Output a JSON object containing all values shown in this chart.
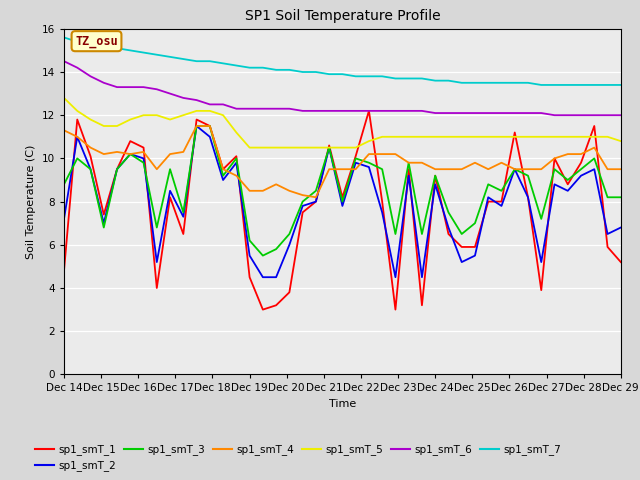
{
  "title": "SP1 Soil Temperature Profile",
  "xlabel": "Time",
  "ylabel": "Soil Temperature (C)",
  "ylim": [
    0,
    16
  ],
  "yticks": [
    0,
    2,
    4,
    6,
    8,
    10,
    12,
    14,
    16
  ],
  "annotation_text": "TZ_osu",
  "annotation_bg": "#ffffcc",
  "annotation_border": "#cc8800",
  "annotation_text_color": "#880000",
  "x_labels": [
    "Dec 14",
    "Dec 15",
    "Dec 16",
    "Dec 17",
    "Dec 18",
    "Dec 19",
    "Dec 20",
    "Dec 21",
    "Dec 22",
    "Dec 23",
    "Dec 24",
    "Dec 25",
    "Dec 26",
    "Dec 27",
    "Dec 28",
    "Dec 29"
  ],
  "series": {
    "sp1_smT_1": {
      "color": "#ff0000",
      "data": [
        4.8,
        11.8,
        10.1,
        7.4,
        9.5,
        10.8,
        10.5,
        4.0,
        8.2,
        6.5,
        11.8,
        11.5,
        9.5,
        10.1,
        4.5,
        3.0,
        3.2,
        3.8,
        7.5,
        8.0,
        10.6,
        8.2,
        10.1,
        12.2,
        8.0,
        3.0,
        9.5,
        3.2,
        9.2,
        6.5,
        5.9,
        5.9,
        8.0,
        8.0,
        11.2,
        8.2,
        3.9,
        10.0,
        8.8,
        9.8,
        11.5,
        5.9,
        5.2
      ]
    },
    "sp1_smT_2": {
      "color": "#0000ee",
      "data": [
        7.2,
        11.0,
        9.5,
        7.0,
        9.5,
        10.2,
        10.0,
        5.2,
        8.5,
        7.3,
        11.5,
        11.0,
        9.0,
        9.8,
        5.5,
        4.5,
        4.5,
        6.0,
        7.8,
        8.0,
        10.5,
        7.8,
        9.8,
        9.6,
        7.5,
        4.5,
        9.2,
        4.5,
        8.8,
        6.8,
        5.2,
        5.5,
        8.2,
        7.8,
        9.5,
        8.2,
        5.2,
        8.8,
        8.5,
        9.2,
        9.5,
        6.5,
        6.8
      ]
    },
    "sp1_smT_3": {
      "color": "#00cc00",
      "data": [
        8.8,
        10.0,
        9.5,
        6.8,
        9.5,
        10.2,
        9.8,
        6.8,
        9.5,
        7.5,
        11.5,
        11.5,
        9.2,
        10.0,
        6.2,
        5.5,
        5.8,
        6.5,
        8.0,
        8.5,
        10.5,
        8.0,
        10.0,
        9.8,
        9.5,
        6.5,
        9.8,
        6.5,
        9.2,
        7.5,
        6.5,
        7.0,
        8.8,
        8.5,
        9.5,
        9.2,
        7.2,
        9.5,
        9.0,
        9.5,
        10.0,
        8.2,
        8.2
      ]
    },
    "sp1_smT_4": {
      "color": "#ff8800",
      "data": [
        11.3,
        11.0,
        10.5,
        10.2,
        10.3,
        10.2,
        10.3,
        9.5,
        10.2,
        10.3,
        11.5,
        11.5,
        9.5,
        9.2,
        8.5,
        8.5,
        8.8,
        8.5,
        8.3,
        8.2,
        9.5,
        9.5,
        9.5,
        10.2,
        10.2,
        10.2,
        9.8,
        9.8,
        9.5,
        9.5,
        9.5,
        9.8,
        9.5,
        9.8,
        9.5,
        9.5,
        9.5,
        10.0,
        10.2,
        10.2,
        10.5,
        9.5,
        9.5
      ]
    },
    "sp1_smT_5": {
      "color": "#eeee00",
      "data": [
        12.8,
        12.2,
        11.8,
        11.5,
        11.5,
        11.8,
        12.0,
        12.0,
        11.8,
        12.0,
        12.2,
        12.2,
        12.0,
        11.2,
        10.5,
        10.5,
        10.5,
        10.5,
        10.5,
        10.5,
        10.5,
        10.5,
        10.5,
        10.8,
        11.0,
        11.0,
        11.0,
        11.0,
        11.0,
        11.0,
        11.0,
        11.0,
        11.0,
        11.0,
        11.0,
        11.0,
        11.0,
        11.0,
        11.0,
        11.0,
        11.0,
        11.0,
        10.8
      ]
    },
    "sp1_smT_6": {
      "color": "#aa00cc",
      "data": [
        14.5,
        14.2,
        13.8,
        13.5,
        13.3,
        13.3,
        13.3,
        13.2,
        13.0,
        12.8,
        12.7,
        12.5,
        12.5,
        12.3,
        12.3,
        12.3,
        12.3,
        12.3,
        12.2,
        12.2,
        12.2,
        12.2,
        12.2,
        12.2,
        12.2,
        12.2,
        12.2,
        12.2,
        12.1,
        12.1,
        12.1,
        12.1,
        12.1,
        12.1,
        12.1,
        12.1,
        12.1,
        12.0,
        12.0,
        12.0,
        12.0,
        12.0,
        12.0
      ]
    },
    "sp1_smT_7": {
      "color": "#00cccc",
      "data": [
        15.6,
        15.4,
        15.3,
        15.2,
        15.1,
        15.0,
        14.9,
        14.8,
        14.7,
        14.6,
        14.5,
        14.5,
        14.4,
        14.3,
        14.2,
        14.2,
        14.1,
        14.1,
        14.0,
        14.0,
        13.9,
        13.9,
        13.8,
        13.8,
        13.8,
        13.7,
        13.7,
        13.7,
        13.6,
        13.6,
        13.5,
        13.5,
        13.5,
        13.5,
        13.5,
        13.5,
        13.4,
        13.4,
        13.4,
        13.4,
        13.4,
        13.4,
        13.4
      ]
    }
  }
}
